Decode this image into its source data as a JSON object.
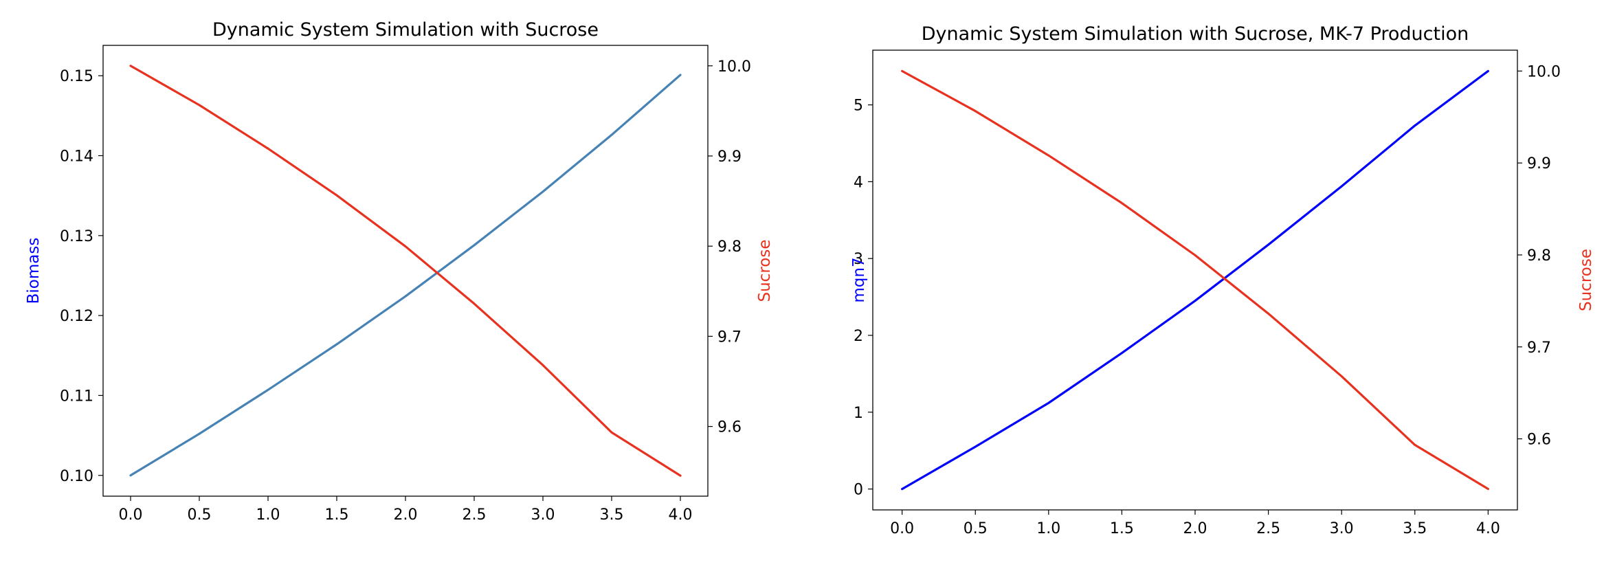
{
  "chart_data": [
    {
      "type": "line",
      "title": "Dynamic System Simulation with Sucrose",
      "xlabel": "",
      "xlim": [
        -0.2,
        4.2
      ],
      "xticks": [
        "0.0",
        "0.5",
        "1.0",
        "1.5",
        "2.0",
        "2.5",
        "3.0",
        "3.5",
        "4.0"
      ],
      "left_axis": {
        "label": "Biomass",
        "label_color": "#0000ff",
        "ylim": [
          0.0974,
          0.1538
        ],
        "ticks": [
          "0.10",
          "0.11",
          "0.12",
          "0.13",
          "0.14",
          "0.15"
        ]
      },
      "right_axis": {
        "label": "Sucrose",
        "label_color": "#e8311e",
        "ylim": [
          9.5227,
          10.0227
        ],
        "ticks": [
          "9.6",
          "9.7",
          "9.8",
          "9.9",
          "10.0"
        ]
      },
      "series": [
        {
          "axis": "left",
          "color": "#4682b4",
          "x": [
            0,
            0.5,
            1.0,
            1.5,
            2.0,
            2.5,
            3.0,
            3.5,
            4.0
          ],
          "values": [
            0.1,
            0.1052,
            0.1107,
            0.1164,
            0.1224,
            0.1288,
            0.1355,
            0.1426,
            0.1501
          ]
        },
        {
          "axis": "right",
          "color": "#e8311e",
          "x": [
            0,
            0.5,
            1.0,
            1.5,
            2.0,
            2.5,
            3.0,
            3.5,
            4.0
          ],
          "values": [
            10.0,
            9.9565,
            9.9082,
            9.8564,
            9.7997,
            9.7362,
            9.668,
            9.5934,
            9.5455
          ]
        }
      ]
    },
    {
      "type": "line",
      "title": "Dynamic System Simulation with Sucrose, MK-7 Production",
      "xlabel": "",
      "xlim": [
        -0.2,
        4.2
      ],
      "xticks": [
        "0.0",
        "0.5",
        "1.0",
        "1.5",
        "2.0",
        "2.5",
        "3.0",
        "3.5",
        "4.0"
      ],
      "left_axis": {
        "label": "mqn7",
        "label_color": "#0000ff",
        "ylim": [
          -0.272,
          5.712
        ],
        "ticks": [
          "0",
          "1",
          "2",
          "3",
          "4",
          "5"
        ]
      },
      "right_axis": {
        "label": "Sucrose",
        "label_color": "#e8311e",
        "ylim": [
          9.5227,
          10.0227
        ],
        "ticks": [
          "9.6",
          "9.7",
          "9.8",
          "9.9",
          "10.0"
        ]
      },
      "series": [
        {
          "axis": "left",
          "color": "#0000ff",
          "x": [
            0,
            0.5,
            1.0,
            1.5,
            2.0,
            2.5,
            3.0,
            3.5,
            4.0
          ],
          "values": [
            0,
            0.55,
            1.12,
            1.77,
            2.45,
            3.18,
            3.94,
            4.73,
            5.44
          ]
        },
        {
          "axis": "right",
          "color": "#e8311e",
          "x": [
            0,
            0.5,
            1.0,
            1.5,
            2.0,
            2.5,
            3.0,
            3.5,
            4.0
          ],
          "values": [
            10.0,
            9.9565,
            9.9082,
            9.8564,
            9.7997,
            9.7362,
            9.668,
            9.5934,
            9.5455
          ]
        }
      ]
    }
  ]
}
